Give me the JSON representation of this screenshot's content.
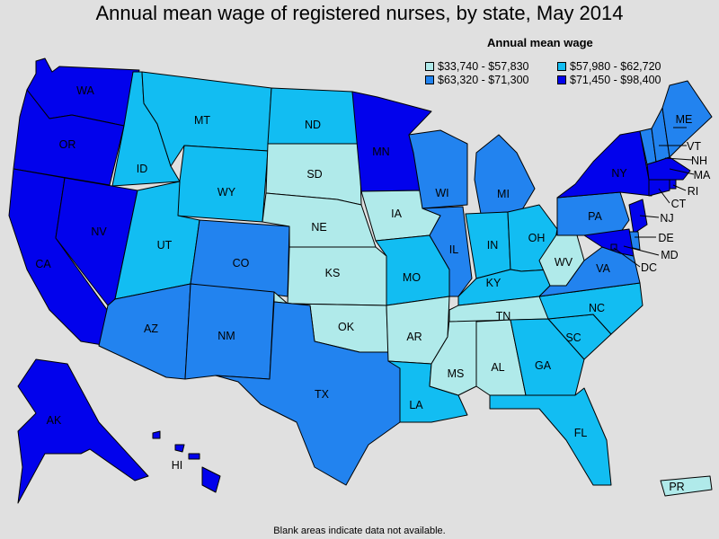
{
  "chart": {
    "title": "Annual mean wage of registered nurses, by state, May 2014",
    "legend_title": "Annual mean wage",
    "footnote": "Blank areas indicate data not available."
  },
  "chart_data": {
    "type": "choropleth",
    "title": "Annual mean wage of registered nurses, by state, May 2014",
    "legend_title": "Annual mean wage",
    "legend_placement": "top-right",
    "bins": [
      {
        "id": "b1",
        "label": "$33,740 - $57,830",
        "color": "#b0eaea"
      },
      {
        "id": "b2",
        "label": "$57,980 - $62,720",
        "color": "#12bdf2"
      },
      {
        "id": "b3",
        "label": "$63,320 - $71,300",
        "color": "#2283ef"
      },
      {
        "id": "b4",
        "label": "$71,450 - $98,400",
        "color": "#0202ec"
      }
    ],
    "states": [
      {
        "code": "WA",
        "bin": "b4"
      },
      {
        "code": "OR",
        "bin": "b4"
      },
      {
        "code": "CA",
        "bin": "b4"
      },
      {
        "code": "NV",
        "bin": "b4"
      },
      {
        "code": "ID",
        "bin": "b2"
      },
      {
        "code": "MT",
        "bin": "b2"
      },
      {
        "code": "WY",
        "bin": "b2"
      },
      {
        "code": "UT",
        "bin": "b2"
      },
      {
        "code": "AZ",
        "bin": "b3"
      },
      {
        "code": "CO",
        "bin": "b3"
      },
      {
        "code": "NM",
        "bin": "b3"
      },
      {
        "code": "ND",
        "bin": "b2"
      },
      {
        "code": "SD",
        "bin": "b1"
      },
      {
        "code": "NE",
        "bin": "b1"
      },
      {
        "code": "KS",
        "bin": "b1"
      },
      {
        "code": "OK",
        "bin": "b1"
      },
      {
        "code": "TX",
        "bin": "b3"
      },
      {
        "code": "MN",
        "bin": "b4"
      },
      {
        "code": "IA",
        "bin": "b1"
      },
      {
        "code": "MO",
        "bin": "b2"
      },
      {
        "code": "AR",
        "bin": "b1"
      },
      {
        "code": "LA",
        "bin": "b2"
      },
      {
        "code": "WI",
        "bin": "b3"
      },
      {
        "code": "IL",
        "bin": "b3"
      },
      {
        "code": "MS",
        "bin": "b1"
      },
      {
        "code": "MI",
        "bin": "b3"
      },
      {
        "code": "IN",
        "bin": "b2"
      },
      {
        "code": "KY",
        "bin": "b2"
      },
      {
        "code": "TN",
        "bin": "b1"
      },
      {
        "code": "AL",
        "bin": "b1"
      },
      {
        "code": "OH",
        "bin": "b2"
      },
      {
        "code": "WV",
        "bin": "b1"
      },
      {
        "code": "VA",
        "bin": "b3"
      },
      {
        "code": "NC",
        "bin": "b2"
      },
      {
        "code": "SC",
        "bin": "b2"
      },
      {
        "code": "GA",
        "bin": "b2"
      },
      {
        "code": "FL",
        "bin": "b2"
      },
      {
        "code": "PA",
        "bin": "b3"
      },
      {
        "code": "NY",
        "bin": "b4"
      },
      {
        "code": "VT",
        "bin": "b3"
      },
      {
        "code": "NH",
        "bin": "b3"
      },
      {
        "code": "ME",
        "bin": "b3"
      },
      {
        "code": "MA",
        "bin": "b4"
      },
      {
        "code": "RI",
        "bin": "b4"
      },
      {
        "code": "CT",
        "bin": "b4"
      },
      {
        "code": "NJ",
        "bin": "b4"
      },
      {
        "code": "DE",
        "bin": "b3"
      },
      {
        "code": "MD",
        "bin": "b4"
      },
      {
        "code": "DC",
        "bin": "b4"
      },
      {
        "code": "AK",
        "bin": "b4"
      },
      {
        "code": "HI",
        "bin": "b4"
      },
      {
        "code": "PR",
        "bin": "b1"
      }
    ]
  }
}
